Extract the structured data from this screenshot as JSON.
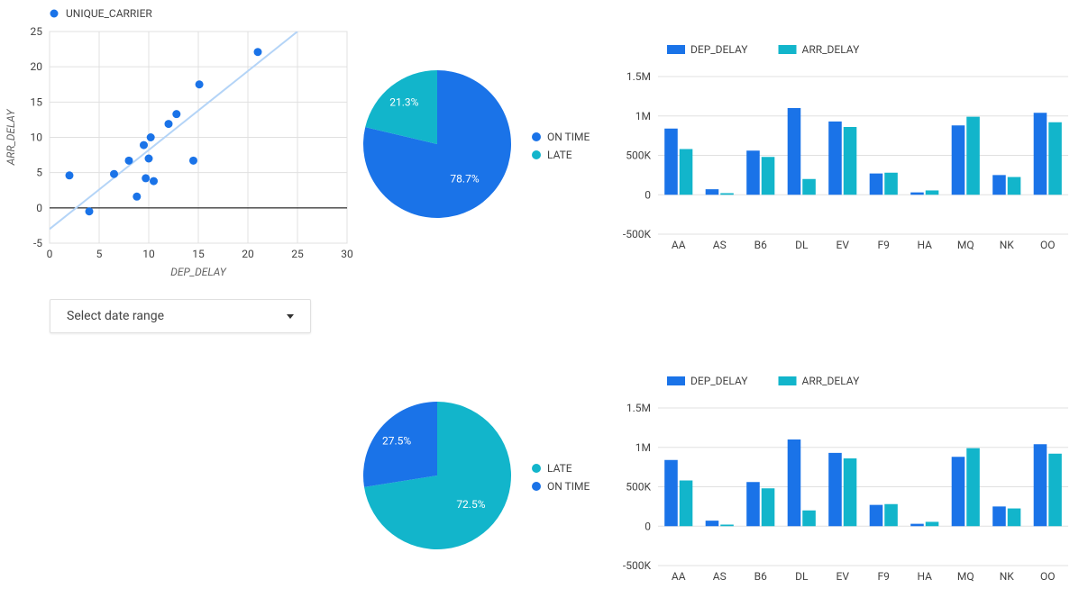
{
  "colors": {
    "blue": "#1a73e8",
    "teal": "#12b5cb",
    "grid": "#e0e0e0",
    "axis_text": "#424242",
    "scatter_point": "#1a73e8",
    "trend_line": "#b4d4f7",
    "zero_line": "#000000",
    "bg": "#ffffff"
  },
  "scatter": {
    "type": "scatter",
    "legend_label": "UNIQUE_CARRIER",
    "x_label": "DEP_DELAY",
    "y_label": "ARR_DELAY",
    "xlim": [
      0,
      30
    ],
    "ylim": [
      -5,
      25
    ],
    "xtick_step": 5,
    "ytick_step": 5,
    "point_radius": 4.5,
    "trend": {
      "x1": 0,
      "y1": -3,
      "x2": 25,
      "y2": 25
    },
    "points": [
      {
        "x": 2.0,
        "y": 4.6
      },
      {
        "x": 4.0,
        "y": -0.5
      },
      {
        "x": 6.5,
        "y": 4.8
      },
      {
        "x": 8.0,
        "y": 6.7
      },
      {
        "x": 8.8,
        "y": 1.6
      },
      {
        "x": 9.5,
        "y": 8.9
      },
      {
        "x": 9.7,
        "y": 4.2
      },
      {
        "x": 10.0,
        "y": 7.0
      },
      {
        "x": 10.2,
        "y": 10.0
      },
      {
        "x": 10.5,
        "y": 3.8
      },
      {
        "x": 12.0,
        "y": 11.9
      },
      {
        "x": 12.8,
        "y": 13.3
      },
      {
        "x": 14.5,
        "y": 6.7
      },
      {
        "x": 15.1,
        "y": 17.5
      },
      {
        "x": 21.0,
        "y": 22.1
      }
    ]
  },
  "pie_top": {
    "type": "pie",
    "slices": [
      {
        "label": "ON TIME",
        "pct": 78.7,
        "color": "#1a73e8",
        "text": "78.7%"
      },
      {
        "label": "LATE",
        "pct": 21.3,
        "color": "#12b5cb",
        "text": "21.3%"
      }
    ],
    "start_angle_deg": -90
  },
  "pie_bottom": {
    "type": "pie",
    "slices": [
      {
        "label": "LATE",
        "pct": 72.5,
        "color": "#12b5cb",
        "text": "72.5%"
      },
      {
        "label": "ON TIME",
        "pct": 27.5,
        "color": "#1a73e8",
        "text": "27.5%"
      }
    ],
    "start_angle_deg": -90
  },
  "bars": {
    "type": "grouped-bar",
    "series": [
      {
        "label": "DEP_DELAY",
        "color": "#1a73e8"
      },
      {
        "label": "ARR_DELAY",
        "color": "#12b5cb"
      }
    ],
    "ylim": [
      -500000,
      1500000
    ],
    "yticks": [
      -500000,
      0,
      500000,
      1000000,
      1500000
    ],
    "ytick_labels": [
      "-500K",
      "0",
      "500K",
      "1M",
      "1.5M"
    ],
    "categories": [
      "AA",
      "AS",
      "B6",
      "DL",
      "EV",
      "F9",
      "HA",
      "MQ",
      "NK",
      "OO"
    ],
    "dep": [
      840000,
      70000,
      560000,
      1100000,
      930000,
      270000,
      30000,
      880000,
      250000,
      1040000
    ],
    "arr": [
      580000,
      20000,
      480000,
      200000,
      860000,
      280000,
      55000,
      990000,
      225000,
      920000
    ]
  },
  "date_picker": {
    "placeholder": "Select date range"
  }
}
